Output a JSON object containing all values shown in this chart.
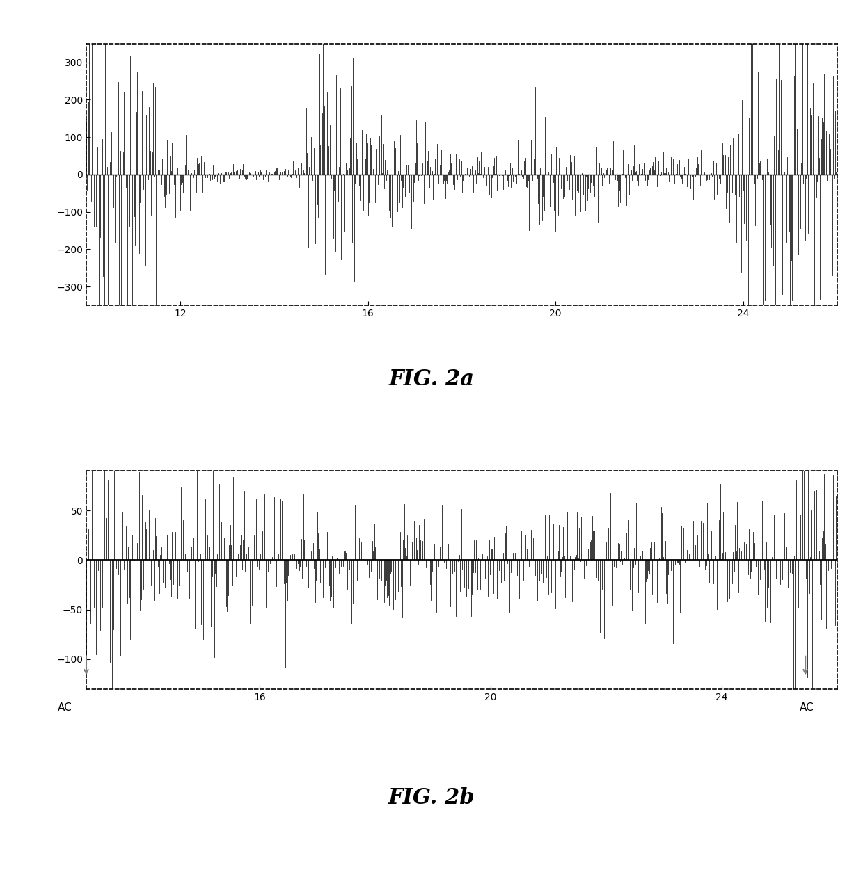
{
  "fig2a": {
    "ylim": [
      -350,
      350
    ],
    "yticks": [
      -300,
      -200,
      -100,
      0,
      100,
      200,
      300
    ],
    "xlim": [
      10.0,
      26.0
    ],
    "xticks": [
      12,
      16,
      20,
      24
    ],
    "linecolor": "#000000",
    "bgcolor": "#ffffff"
  },
  "fig2b": {
    "ylim": [
      -130,
      90
    ],
    "yticks": [
      -100,
      -50,
      0,
      50
    ],
    "xlim": [
      13.0,
      26.0
    ],
    "xticks": [
      16,
      20,
      24
    ],
    "linecolor": "#000000",
    "bgcolor": "#ffffff",
    "ac_left_x": 13.0,
    "ac_right_x": 25.45
  },
  "title2a": "FIG. 2a",
  "title2b": "FIG. 2b",
  "title_fontsize": 22,
  "seed": 42
}
